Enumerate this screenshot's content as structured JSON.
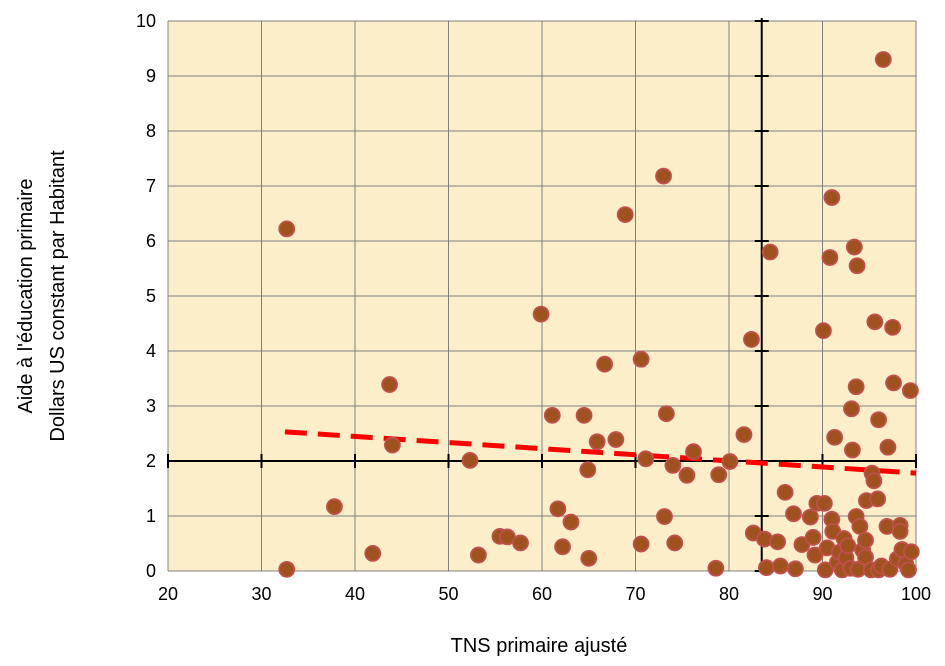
{
  "chart_data": {
    "type": "scatter",
    "title": "",
    "xlabel": "TNS primaire ajusté",
    "ylabel_line1": "Aide à l'éducation primaire",
    "ylabel_line2": "Dollars US constant par Habitant",
    "xlim": [
      20,
      100
    ],
    "ylim": [
      0,
      10
    ],
    "xticks": [
      20,
      30,
      40,
      50,
      60,
      70,
      80,
      90,
      100
    ],
    "yticks": [
      0,
      1,
      2,
      3,
      4,
      5,
      6,
      7,
      8,
      9,
      10
    ],
    "grid": true,
    "plot_background": "#fdeeca",
    "grid_color": "#808080",
    "marker_fill": "#a0521e",
    "marker_edge": "#c0504d",
    "trendline": {
      "style": "dashed",
      "color": "#ff0000",
      "x": [
        32.5,
        100
      ],
      "y": [
        2.53,
        1.78
      ]
    },
    "reference_lines": {
      "x": 83.5,
      "y": 2.0,
      "color": "#000000"
    },
    "points": [
      {
        "x": 32.7,
        "y": 6.22
      },
      {
        "x": 32.7,
        "y": 0.03
      },
      {
        "x": 37.8,
        "y": 1.17
      },
      {
        "x": 41.9,
        "y": 0.32
      },
      {
        "x": 43.7,
        "y": 3.39
      },
      {
        "x": 44.0,
        "y": 2.29
      },
      {
        "x": 52.3,
        "y": 2.01
      },
      {
        "x": 53.2,
        "y": 0.29
      },
      {
        "x": 55.5,
        "y": 0.63
      },
      {
        "x": 56.3,
        "y": 0.62
      },
      {
        "x": 57.7,
        "y": 0.51
      },
      {
        "x": 59.9,
        "y": 4.67
      },
      {
        "x": 61.1,
        "y": 2.83
      },
      {
        "x": 61.7,
        "y": 1.13
      },
      {
        "x": 62.2,
        "y": 0.44
      },
      {
        "x": 63.1,
        "y": 0.89
      },
      {
        "x": 64.5,
        "y": 2.83
      },
      {
        "x": 64.9,
        "y": 1.84
      },
      {
        "x": 65.0,
        "y": 0.23
      },
      {
        "x": 65.9,
        "y": 2.35
      },
      {
        "x": 66.7,
        "y": 3.76
      },
      {
        "x": 67.9,
        "y": 2.39
      },
      {
        "x": 68.9,
        "y": 6.48
      },
      {
        "x": 70.6,
        "y": 3.85
      },
      {
        "x": 70.6,
        "y": 0.49
      },
      {
        "x": 71.1,
        "y": 2.04
      },
      {
        "x": 73.0,
        "y": 7.18
      },
      {
        "x": 73.1,
        "y": 0.99
      },
      {
        "x": 73.3,
        "y": 2.86
      },
      {
        "x": 74.0,
        "y": 1.92
      },
      {
        "x": 74.2,
        "y": 0.51
      },
      {
        "x": 75.5,
        "y": 1.74
      },
      {
        "x": 76.2,
        "y": 2.17
      },
      {
        "x": 78.6,
        "y": 0.05
      },
      {
        "x": 78.9,
        "y": 1.75
      },
      {
        "x": 80.1,
        "y": 1.99
      },
      {
        "x": 81.6,
        "y": 2.48
      },
      {
        "x": 82.4,
        "y": 4.21
      },
      {
        "x": 82.6,
        "y": 0.69
      },
      {
        "x": 83.8,
        "y": 0.58
      },
      {
        "x": 84.0,
        "y": 0.06
      },
      {
        "x": 84.4,
        "y": 5.8
      },
      {
        "x": 85.2,
        "y": 0.53
      },
      {
        "x": 85.5,
        "y": 0.09
      },
      {
        "x": 86.0,
        "y": 1.43
      },
      {
        "x": 86.9,
        "y": 1.04
      },
      {
        "x": 87.1,
        "y": 0.04
      },
      {
        "x": 87.8,
        "y": 0.48
      },
      {
        "x": 88.7,
        "y": 0.98
      },
      {
        "x": 89.0,
        "y": 0.61
      },
      {
        "x": 89.2,
        "y": 0.29
      },
      {
        "x": 89.4,
        "y": 1.23
      },
      {
        "x": 90.1,
        "y": 4.37
      },
      {
        "x": 90.2,
        "y": 1.23
      },
      {
        "x": 90.3,
        "y": 0.02
      },
      {
        "x": 90.5,
        "y": 0.42
      },
      {
        "x": 90.8,
        "y": 5.7
      },
      {
        "x": 91.0,
        "y": 6.79
      },
      {
        "x": 91.0,
        "y": 0.94
      },
      {
        "x": 91.1,
        "y": 0.72
      },
      {
        "x": 91.3,
        "y": 2.43
      },
      {
        "x": 91.6,
        "y": 0.16
      },
      {
        "x": 91.8,
        "y": 0.34
      },
      {
        "x": 92.1,
        "y": 0.02
      },
      {
        "x": 92.3,
        "y": 0.59
      },
      {
        "x": 92.5,
        "y": 0.24
      },
      {
        "x": 92.7,
        "y": 0.46
      },
      {
        "x": 93.0,
        "y": 0.05
      },
      {
        "x": 93.1,
        "y": 2.95
      },
      {
        "x": 93.2,
        "y": 2.2
      },
      {
        "x": 93.4,
        "y": 5.89
      },
      {
        "x": 93.6,
        "y": 3.35
      },
      {
        "x": 93.6,
        "y": 0.99
      },
      {
        "x": 93.7,
        "y": 5.55
      },
      {
        "x": 93.8,
        "y": 0.03
      },
      {
        "x": 94.0,
        "y": 0.81
      },
      {
        "x": 94.3,
        "y": 0.38
      },
      {
        "x": 94.6,
        "y": 0.56
      },
      {
        "x": 94.6,
        "y": 0.25
      },
      {
        "x": 94.7,
        "y": 1.28
      },
      {
        "x": 95.2,
        "y": 0.02
      },
      {
        "x": 95.3,
        "y": 1.78
      },
      {
        "x": 95.6,
        "y": 4.53
      },
      {
        "x": 95.5,
        "y": 1.64
      },
      {
        "x": 95.9,
        "y": 1.31
      },
      {
        "x": 96.0,
        "y": 2.75
      },
      {
        "x": 96.0,
        "y": 0.02
      },
      {
        "x": 96.3,
        "y": 0.09
      },
      {
        "x": 96.5,
        "y": 9.3
      },
      {
        "x": 96.9,
        "y": 0.81
      },
      {
        "x": 97.0,
        "y": 2.25
      },
      {
        "x": 97.2,
        "y": 0.03
      },
      {
        "x": 97.5,
        "y": 4.43
      },
      {
        "x": 97.6,
        "y": 3.42
      },
      {
        "x": 98.0,
        "y": 0.22
      },
      {
        "x": 98.3,
        "y": 0.83
      },
      {
        "x": 98.3,
        "y": 0.72
      },
      {
        "x": 98.5,
        "y": 0.39
      },
      {
        "x": 98.9,
        "y": 0.13
      },
      {
        "x": 99.2,
        "y": 0.02
      },
      {
        "x": 99.4,
        "y": 3.28
      },
      {
        "x": 99.5,
        "y": 0.35
      }
    ]
  }
}
